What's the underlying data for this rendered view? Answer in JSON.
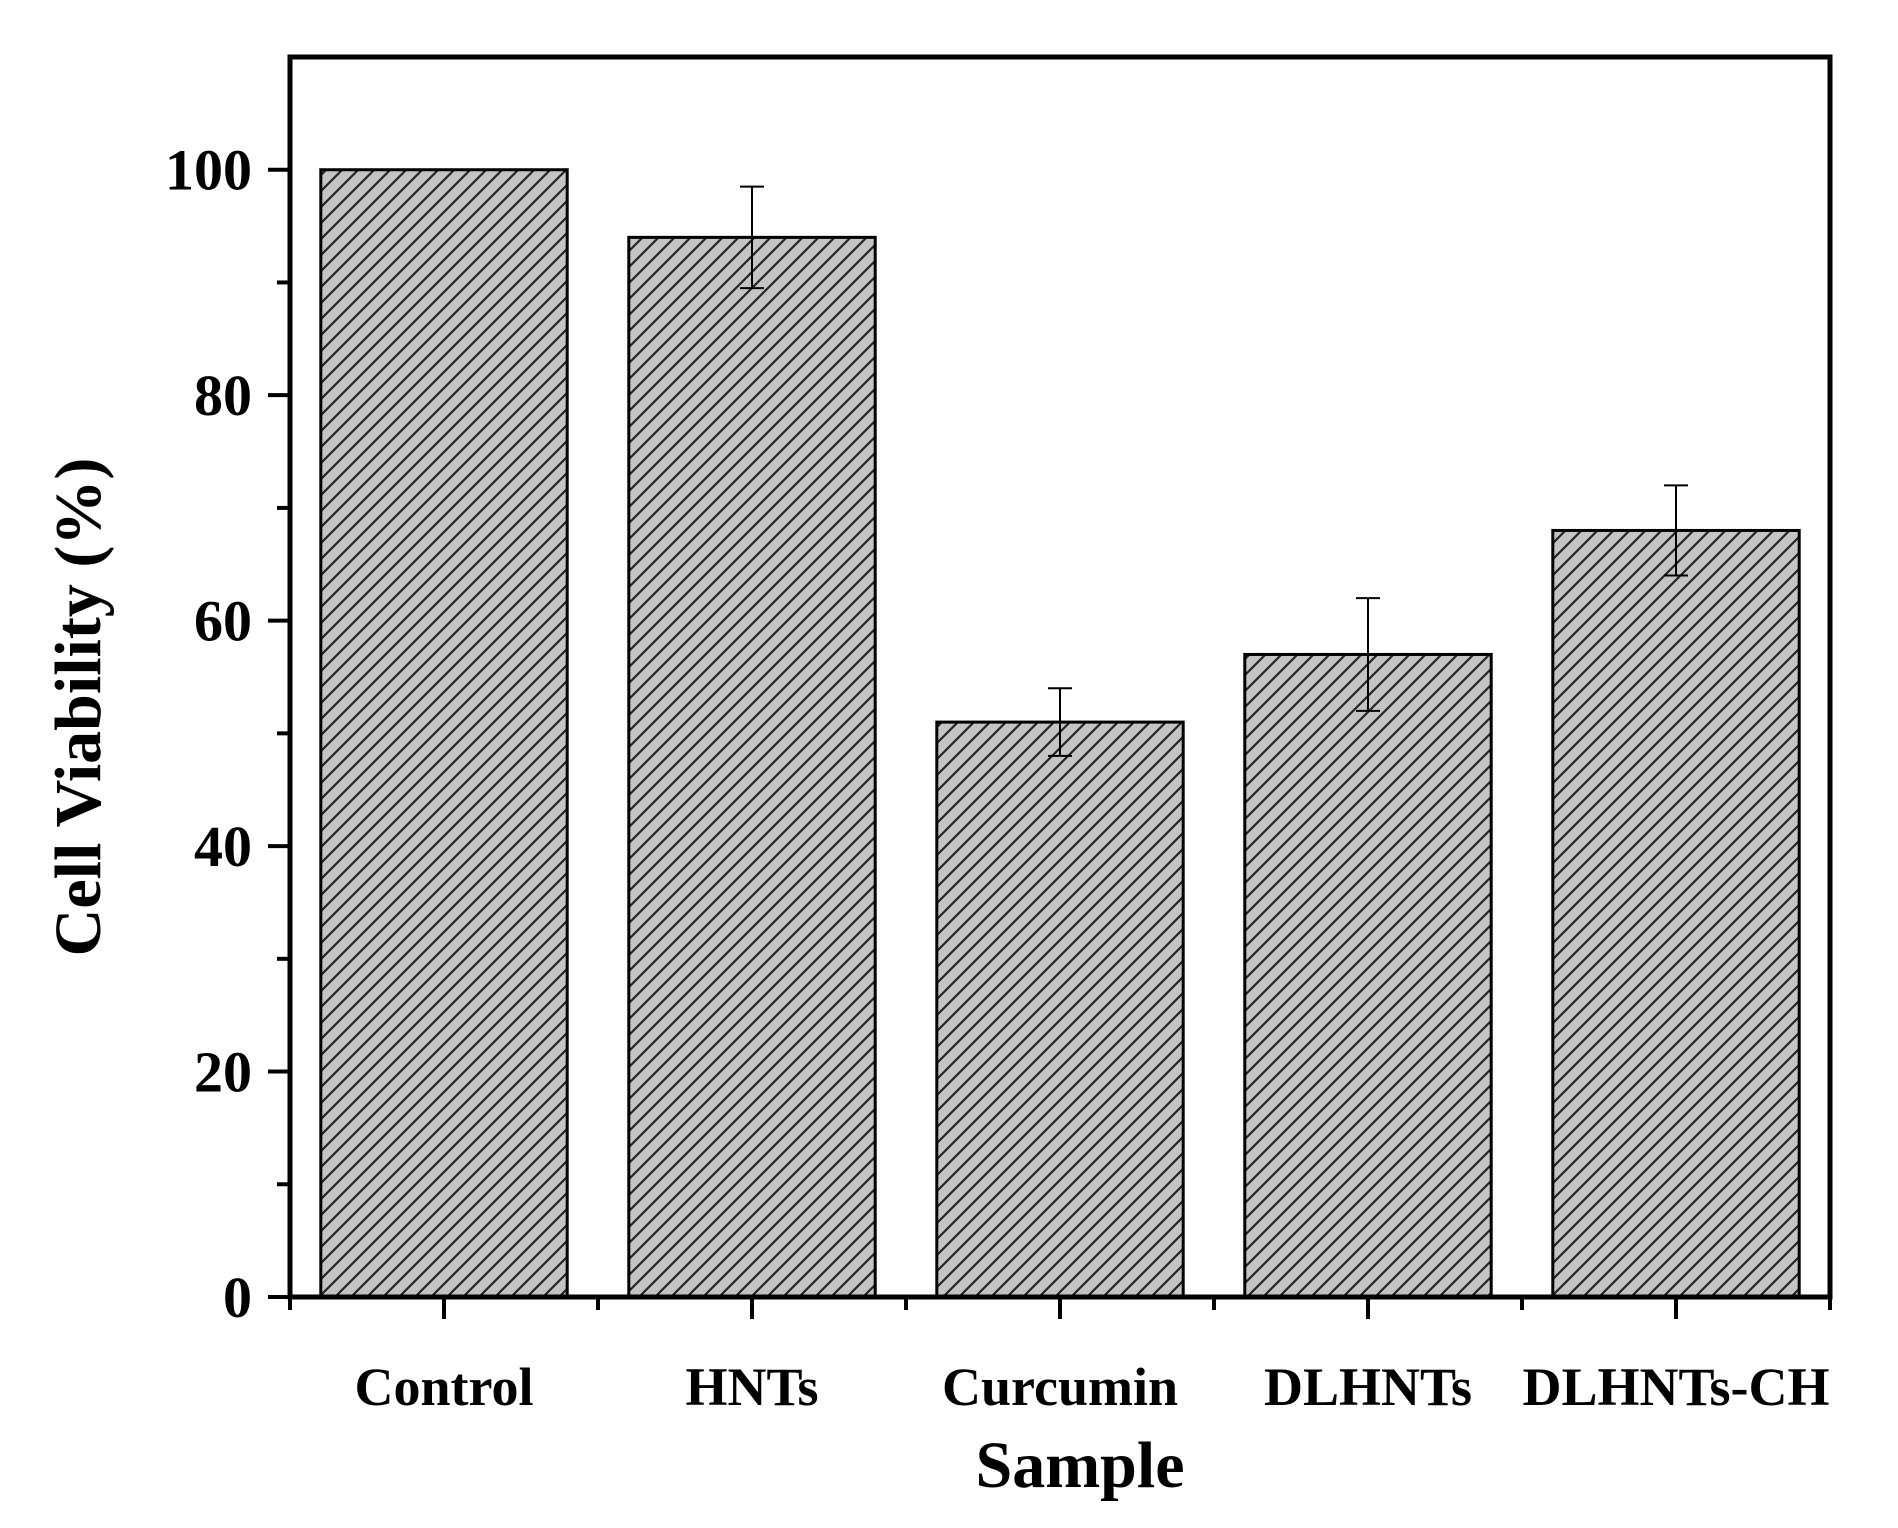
{
  "chart_data": {
    "type": "bar",
    "title": "",
    "xlabel": "Sample",
    "ylabel": "Cell Viability (%)",
    "categories": [
      "Control",
      "HNTs",
      "Curcumin",
      "DLHNTs",
      "DLHNTs-CH"
    ],
    "values": [
      100,
      94,
      51,
      57,
      68
    ],
    "error": [
      0,
      4.5,
      3,
      5,
      4
    ],
    "ylim": [
      0,
      110
    ],
    "yticks": [
      0,
      20,
      40,
      60,
      80,
      100
    ],
    "yticks_minor": [
      10,
      30,
      50,
      70,
      90
    ],
    "grid": false,
    "bar_fill": "#c4c4c4",
    "hatch_color": "#222222",
    "hatch_pattern": "diagonal"
  }
}
